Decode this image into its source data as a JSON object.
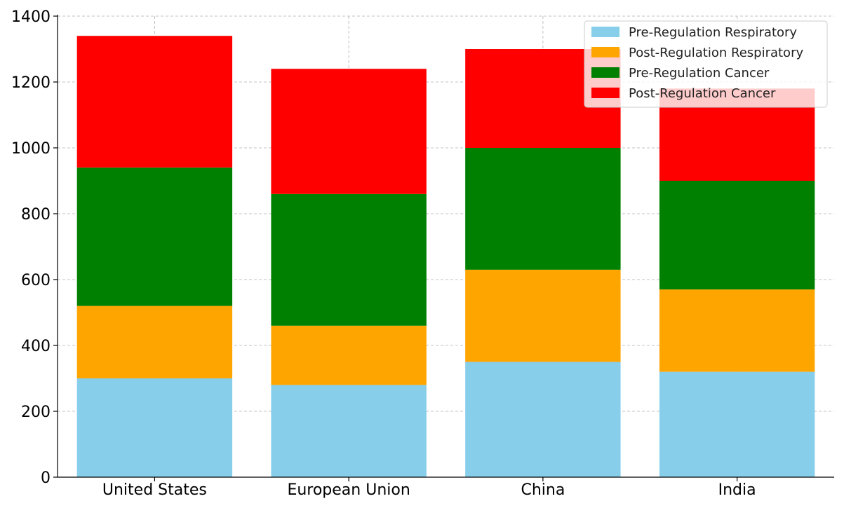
{
  "chart_data": {
    "type": "bar",
    "stacked": true,
    "categories": [
      "United States",
      "European Union",
      "China",
      "India"
    ],
    "series": [
      {
        "name": "Pre-Regulation Respiratory",
        "color": "#87CEEB",
        "values": [
          300,
          280,
          350,
          320
        ]
      },
      {
        "name": "Post-Regulation Respiratory",
        "color": "#FFA500",
        "values": [
          220,
          180,
          280,
          250
        ]
      },
      {
        "name": "Pre-Regulation Cancer",
        "color": "#008000",
        "values": [
          420,
          400,
          370,
          330
        ]
      },
      {
        "name": "Post-Regulation Cancer",
        "color": "#FF0000",
        "values": [
          400,
          380,
          300,
          280
        ]
      }
    ],
    "yticks": [
      0,
      200,
      400,
      600,
      800,
      1000,
      1200,
      1400
    ],
    "ylim": [
      0,
      1400
    ],
    "grid": true,
    "legend_position": "top-right"
  }
}
